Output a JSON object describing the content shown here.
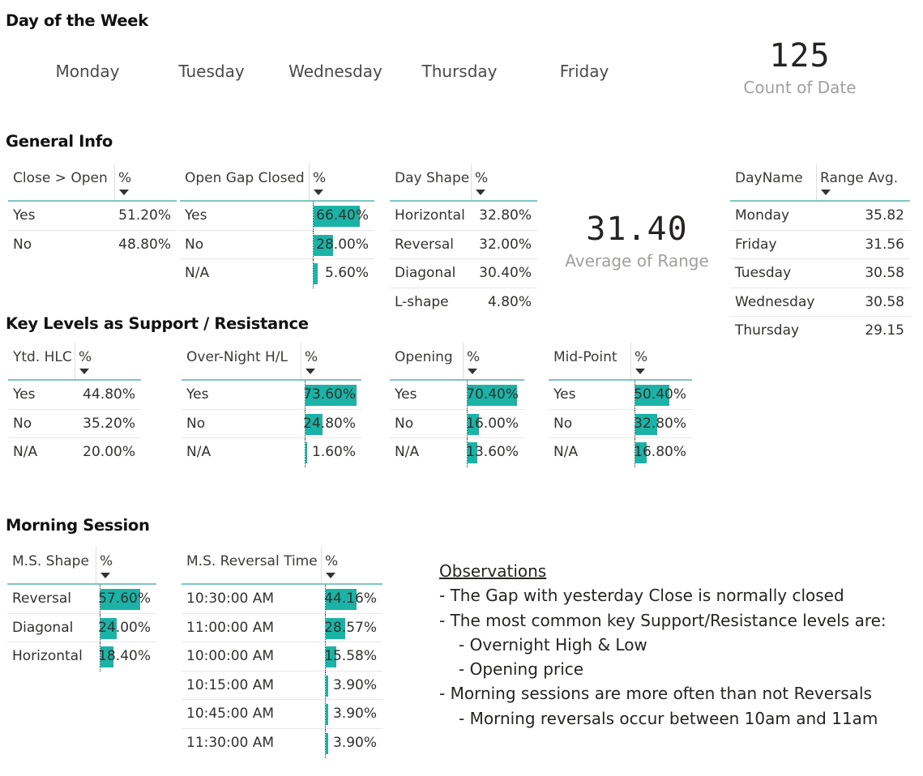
{
  "titles": {
    "day_of_week": "Day of the Week",
    "general_info": "General Info",
    "key_levels": "Key Levels as Support / Resistance",
    "morning_session": "Morning Session"
  },
  "day_slicer": [
    "Monday",
    "Tuesday",
    "Wednesday",
    "Thursday",
    "Friday"
  ],
  "count_card": {
    "value": "125",
    "label": "Count of Date"
  },
  "avg_card": {
    "value": "31.40",
    "label": "Average of Range"
  },
  "tables": {
    "close_open": {
      "headers": [
        "Close > Open",
        "%"
      ],
      "rows": [
        {
          "label": "Yes",
          "pct": "51.20%"
        },
        {
          "label": "No",
          "pct": "48.80%"
        }
      ]
    },
    "gap_closed": {
      "headers": [
        "Open Gap Closed",
        "%"
      ],
      "rows": [
        {
          "label": "Yes",
          "pct": "66.40%",
          "value": 66.4
        },
        {
          "label": "No",
          "pct": "28.00%",
          "value": 28.0
        },
        {
          "label": "N/A",
          "pct": "5.60%",
          "value": 5.6
        }
      ]
    },
    "day_shape": {
      "headers": [
        "Day Shape",
        "%"
      ],
      "rows": [
        {
          "label": "Horizontal",
          "pct": "32.80%"
        },
        {
          "label": "Reversal",
          "pct": "32.00%"
        },
        {
          "label": "Diagonal",
          "pct": "30.40%"
        },
        {
          "label": "L-shape",
          "pct": "4.80%"
        }
      ]
    },
    "range_avg": {
      "headers": [
        "DayName",
        "Range Avg."
      ],
      "rows": [
        {
          "label": "Monday",
          "pct": "35.82"
        },
        {
          "label": "Friday",
          "pct": "31.56"
        },
        {
          "label": "Tuesday",
          "pct": "30.58"
        },
        {
          "label": "Wednesday",
          "pct": "30.58"
        },
        {
          "label": "Thursday",
          "pct": "29.15"
        }
      ]
    },
    "ytd_hlc": {
      "headers": [
        "Ytd. HLC",
        "%"
      ],
      "rows": [
        {
          "label": "Yes",
          "pct": "44.80%"
        },
        {
          "label": "No",
          "pct": "35.20%"
        },
        {
          "label": "N/A",
          "pct": "20.00%"
        }
      ]
    },
    "overnight": {
      "headers": [
        "Over-Night H/L",
        "%"
      ],
      "rows": [
        {
          "label": "Yes",
          "pct": "73.60%",
          "value": 73.6
        },
        {
          "label": "No",
          "pct": "24.80%",
          "value": 24.8
        },
        {
          "label": "N/A",
          "pct": "1.60%",
          "value": 1.6
        }
      ]
    },
    "opening": {
      "headers": [
        "Opening",
        "%"
      ],
      "rows": [
        {
          "label": "Yes",
          "pct": "70.40%",
          "value": 70.4
        },
        {
          "label": "No",
          "pct": "16.00%",
          "value": 16.0
        },
        {
          "label": "N/A",
          "pct": "13.60%",
          "value": 13.6
        }
      ]
    },
    "midpoint": {
      "headers": [
        "Mid-Point",
        "%"
      ],
      "rows": [
        {
          "label": "Yes",
          "pct": "50.40%",
          "value": 50.4
        },
        {
          "label": "No",
          "pct": "32.80%",
          "value": 32.8
        },
        {
          "label": "N/A",
          "pct": "16.80%",
          "value": 16.8
        }
      ]
    },
    "ms_shape": {
      "headers": [
        "M.S. Shape",
        "%"
      ],
      "rows": [
        {
          "label": "Reversal",
          "pct": "57.60%",
          "value": 57.6
        },
        {
          "label": "Diagonal",
          "pct": "24.00%",
          "value": 24.0
        },
        {
          "label": "Horizontal",
          "pct": "18.40%",
          "value": 18.4
        }
      ]
    },
    "ms_reversal_time": {
      "headers": [
        "M.S. Reversal Time",
        "%"
      ],
      "rows": [
        {
          "label": "10:30:00 AM",
          "pct": "44.16%",
          "value": 44.16
        },
        {
          "label": "11:00:00 AM",
          "pct": "28.57%",
          "value": 28.57
        },
        {
          "label": "10:00:00 AM",
          "pct": "15.58%",
          "value": 15.58
        },
        {
          "label": "10:15:00 AM",
          "pct": "3.90%",
          "value": 3.9
        },
        {
          "label": "10:45:00 AM",
          "pct": "3.90%",
          "value": 3.9
        },
        {
          "label": "11:30:00 AM",
          "pct": "3.90%",
          "value": 3.9
        }
      ]
    }
  },
  "observations": {
    "title": "Observations",
    "lines": [
      "- The Gap with yesterday Close is normally closed",
      "- The most common key Support/Resistance levels are:",
      "- Overnight High & Low",
      "- Opening price",
      "- Morning sessions are more often than not Reversals",
      "- Morning reversals occur between 10am and 11am"
    ]
  },
  "colors": {
    "bar": "#1ab3a6",
    "header_rule": "#7fc6c3",
    "muted_text": "#a19f9d"
  }
}
